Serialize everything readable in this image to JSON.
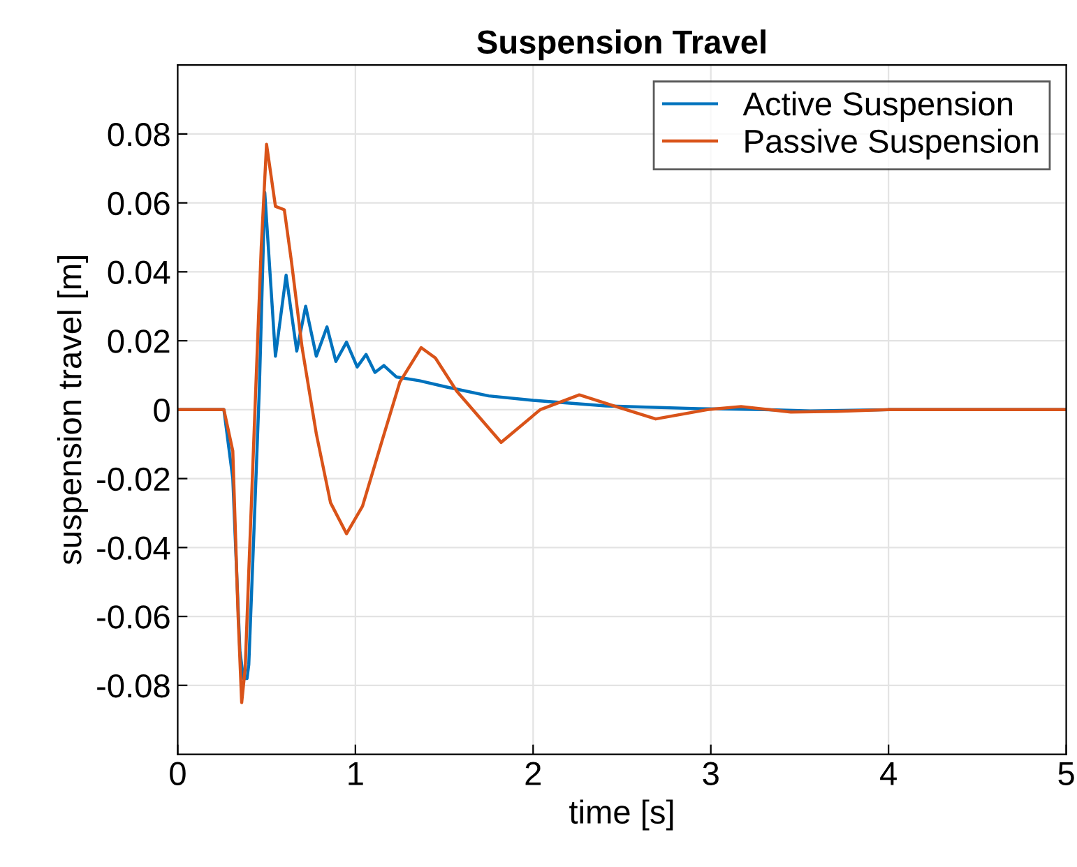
{
  "chart_data": {
    "type": "line",
    "title": "Suspension Travel",
    "xlabel": "time [s]",
    "ylabel": "suspension travel [m]",
    "xlim": [
      0,
      5
    ],
    "ylim": [
      -0.1,
      0.1
    ],
    "xticks": [
      0,
      1,
      2,
      3,
      4,
      5
    ],
    "yticks": [
      {
        "value": -0.08,
        "label": "-0.08"
      },
      {
        "value": -0.06,
        "label": "-0.06"
      },
      {
        "value": -0.04,
        "label": "-0.04"
      },
      {
        "value": -0.02,
        "label": "-0.02"
      },
      0,
      0.02,
      0.04,
      0.06,
      0.08
    ],
    "grid": true,
    "legend": "top right",
    "marker": "none",
    "line_style": "solid",
    "series": [
      {
        "name": "Active Suspension",
        "color": "#0072bd",
        "x": [
          0,
          0.26,
          0.31,
          0.35,
          0.37,
          0.39,
          0.4,
          0.43,
          0.46,
          0.49,
          0.55,
          0.61,
          0.67,
          0.72,
          0.78,
          0.84,
          0.89,
          0.95,
          1.01,
          1.06,
          1.11,
          1.16,
          1.23,
          1.36,
          1.51,
          1.75,
          2.0,
          2.41,
          2.93,
          3.3,
          3.56,
          3.8,
          4.0,
          5.0
        ],
        "values": [
          0,
          0,
          -0.02,
          -0.07,
          -0.078,
          -0.078,
          -0.074,
          -0.034,
          0.007,
          0.063,
          0.0155,
          0.039,
          0.017,
          0.03,
          0.0155,
          0.024,
          0.014,
          0.0196,
          0.0124,
          0.016,
          0.0108,
          0.0128,
          0.0095,
          0.0084,
          0.0066,
          0.004,
          0.0027,
          0.0011,
          0.0003,
          0,
          -0.0004,
          -0.0002,
          0,
          0
        ]
      },
      {
        "name": "Passive Suspension",
        "color": "#d95319",
        "x": [
          0,
          0.26,
          0.31,
          0.34,
          0.36,
          0.38,
          0.4,
          0.44,
          0.47,
          0.5,
          0.55,
          0.6,
          0.64,
          0.7,
          0.78,
          0.86,
          0.95,
          1.04,
          1.15,
          1.25,
          1.37,
          1.45,
          1.57,
          1.82,
          2.04,
          2.26,
          2.46,
          2.69,
          2.98,
          3.17,
          3.45,
          3.71,
          4.0,
          5.0
        ],
        "values": [
          0,
          0,
          -0.012,
          -0.06,
          -0.085,
          -0.075,
          -0.047,
          0.007,
          0.047,
          0.077,
          0.059,
          0.058,
          0.043,
          0.018,
          -0.007,
          -0.027,
          -0.036,
          -0.028,
          -0.009,
          0.008,
          0.018,
          0.015,
          0.0054,
          -0.0095,
          0,
          0.0043,
          0.001,
          -0.0027,
          0,
          0.0009,
          -0.0007,
          -0.0005,
          0,
          0
        ]
      }
    ]
  }
}
